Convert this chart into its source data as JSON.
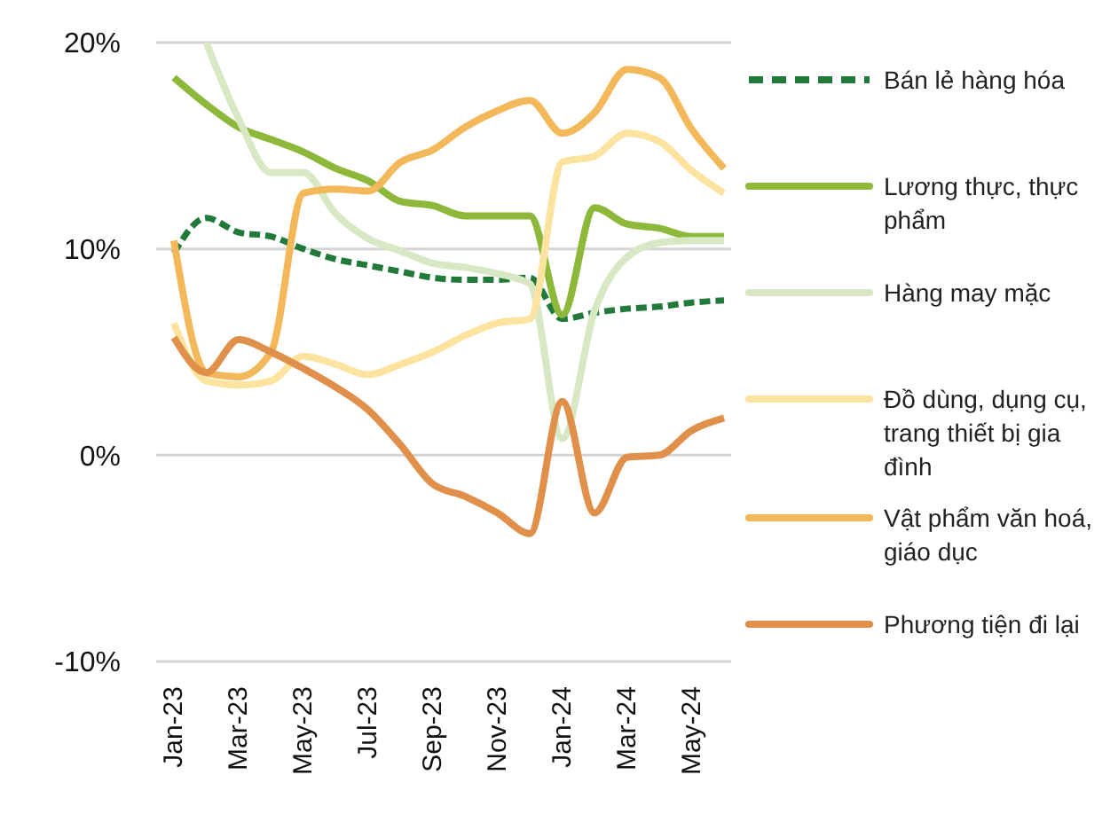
{
  "chart_data": {
    "type": "line",
    "categories": [
      "Jan-23",
      null,
      "Mar-23",
      null,
      "May-23",
      null,
      "Jul-23",
      null,
      "Sep-23",
      null,
      "Nov-23",
      null,
      "Jan-24",
      null,
      "Mar-24",
      null,
      "May-24",
      null
    ],
    "ylim": [
      -10,
      20
    ],
    "yticks": [
      {
        "value": -10,
        "label": "-10%"
      },
      {
        "value": 0,
        "label": "0%"
      },
      {
        "value": 10,
        "label": "10%"
      },
      {
        "value": 20,
        "label": "20%"
      }
    ],
    "grid": "y",
    "legend": "right",
    "marker": "none",
    "series": [
      {
        "name": "Bán lẻ hàng hóa",
        "color": "#217a3a",
        "line_style": "dashed",
        "values": [
          9.8,
          11.5,
          10.8,
          10.6,
          10.0,
          9.5,
          9.2,
          8.9,
          8.6,
          8.5,
          8.5,
          8.6,
          6.6,
          6.9,
          7.1,
          7.2,
          7.4,
          7.5
        ]
      },
      {
        "name": "Lương thực, thực phẩm",
        "color": "#8db83a",
        "line_style": "solid",
        "values": [
          18.3,
          17.0,
          15.9,
          15.3,
          14.7,
          13.9,
          13.3,
          12.3,
          12.1,
          11.6,
          11.6,
          11.6,
          6.8,
          12.0,
          11.2,
          11.0,
          10.6,
          10.6
        ]
      },
      {
        "name": "Hàng may mặc",
        "color": "#d9e8c4",
        "line_style": "solid",
        "values": [
          null,
          20.0,
          16.3,
          13.7,
          13.7,
          11.7,
          10.5,
          9.9,
          9.3,
          9.1,
          8.8,
          8.3,
          0.8,
          7.0,
          9.6,
          10.3,
          10.4,
          10.4
        ]
      },
      {
        "name": "Đồ dùng, dụng cụ, trang thiết bị gia đình",
        "color": "#fde3a0",
        "line_style": "solid",
        "values": [
          6.4,
          3.6,
          3.4,
          3.6,
          4.8,
          4.4,
          3.9,
          4.4,
          5.0,
          5.8,
          6.4,
          6.6,
          14.2,
          14.5,
          15.6,
          15.2,
          13.8,
          12.7
        ]
      },
      {
        "name": "Vật phẩm văn hoá, giáo dục",
        "color": "#f2b85a",
        "line_style": "solid",
        "values": [
          10.4,
          4.0,
          3.8,
          5.0,
          12.7,
          12.9,
          12.8,
          14.2,
          14.8,
          15.9,
          16.7,
          17.2,
          15.6,
          16.6,
          18.7,
          18.3,
          15.8,
          13.9
        ]
      },
      {
        "name": "Phương tiện đi lại",
        "color": "#e0904a",
        "line_style": "solid",
        "values": [
          5.7,
          4.0,
          5.6,
          5.0,
          4.2,
          3.3,
          2.2,
          0.5,
          -1.4,
          -2.0,
          -2.8,
          -3.8,
          2.6,
          -2.8,
          -0.1,
          0.0,
          1.2,
          1.8
        ]
      }
    ]
  }
}
